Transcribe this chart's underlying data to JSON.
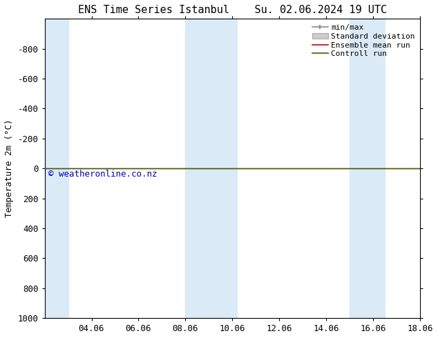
{
  "title_left": "ENS Time Series Istanbul",
  "title_right": "Su. 02.06.2024 19 UTC",
  "ylabel": "Temperature 2m (°C)",
  "ylim_bottom": 1000,
  "ylim_top": -1000,
  "yticks": [
    -800,
    -600,
    -400,
    -200,
    0,
    200,
    400,
    600,
    800,
    1000
  ],
  "xlim": [
    0,
    16
  ],
  "xtick_positions": [
    2,
    4,
    6,
    8,
    10,
    12,
    14,
    16
  ],
  "xtick_labels": [
    "04.06",
    "06.06",
    "08.06",
    "10.06",
    "12.06",
    "14.06",
    "16.06",
    "18.06"
  ],
  "blue_bands": [
    [
      0,
      1.0
    ],
    [
      6.0,
      7.0
    ],
    [
      7.0,
      8.2
    ],
    [
      13.0,
      14.5
    ]
  ],
  "green_line_y": 0,
  "red_line_y": 0,
  "legend_labels": [
    "min/max",
    "Standard deviation",
    "Ensemble mean run",
    "Controll run"
  ],
  "watermark": "© weatheronline.co.nz",
  "watermark_color": "#0000bb",
  "bg_color": "#ffffff",
  "band_color": "#daeaf7",
  "font_size_title": 11,
  "font_size_axis": 9,
  "font_size_legend": 8,
  "font_size_watermark": 9
}
